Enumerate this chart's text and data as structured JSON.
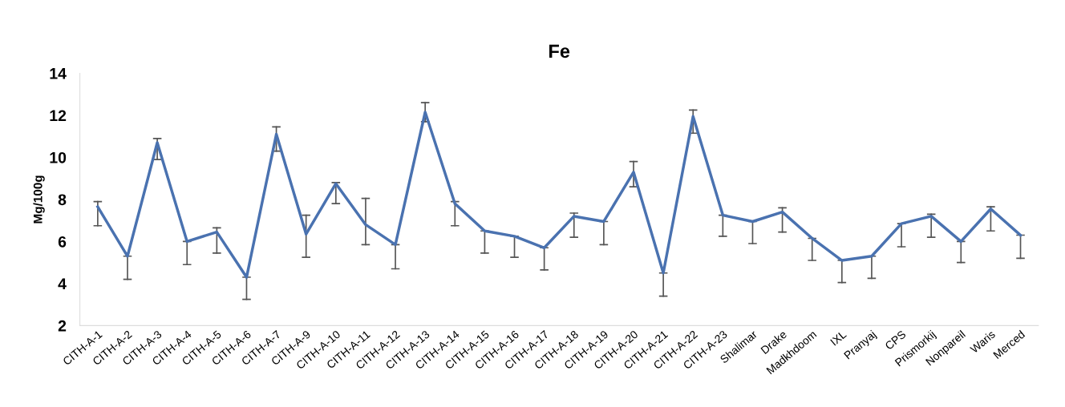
{
  "chart_data": {
    "type": "line",
    "title": "Fe",
    "ylabel": "Mg/100g",
    "categories": [
      "CITH-A-1",
      "CITH-A-2",
      "CITH-A-3",
      "CITH-A-4",
      "CITH-A-5",
      "CITH-A-6",
      "CITH-A-7",
      "CITH-A-9",
      "CITH-A-10",
      "CITH-A-11",
      "CITH-A-12",
      "CITH-A-13",
      "CITH-A-14",
      "CITH-A-15",
      "CITH-A-16",
      "CITH-A-17",
      "CITH-A-18",
      "CITH-A-19",
      "CITH-A-20",
      "CITH-A-21",
      "CITH-A-22",
      "CITH-A-23",
      "Shalimar",
      "Drake",
      "Madkhdoom",
      "IXL",
      "Pranyaj",
      "CPS",
      "Prismorkij",
      "Nonpareil",
      "Waris",
      "Merced"
    ],
    "series": [
      {
        "color": "#4a72b0",
        "values": [
          7.65,
          5.3,
          10.7,
          6.0,
          6.45,
          4.3,
          11.1,
          6.35,
          8.75,
          6.8,
          5.85,
          12.15,
          7.8,
          6.5,
          6.25,
          5.7,
          7.2,
          6.95,
          9.3,
          4.5,
          11.95,
          7.25,
          6.95,
          7.4,
          6.15,
          5.1,
          5.3,
          6.85,
          7.2,
          6.0,
          7.55,
          6.3
        ],
        "errors": [
          [
            6.75,
            7.9
          ],
          [
            4.2,
            5.3
          ],
          [
            9.9,
            10.9
          ],
          [
            4.9,
            6.0
          ],
          [
            5.45,
            6.65
          ],
          [
            3.25,
            4.3
          ],
          [
            10.3,
            11.45
          ],
          [
            5.25,
            7.25
          ],
          [
            7.8,
            8.8
          ],
          [
            5.85,
            8.05
          ],
          [
            4.7,
            5.85
          ],
          [
            11.7,
            12.6
          ],
          [
            6.75,
            7.9
          ],
          [
            5.45,
            6.5
          ],
          [
            5.25,
            6.25
          ],
          [
            4.65,
            5.7
          ],
          [
            6.2,
            7.35
          ],
          [
            5.85,
            6.95
          ],
          [
            8.6,
            9.8
          ],
          [
            3.4,
            4.5
          ],
          [
            11.15,
            12.25
          ],
          [
            6.25,
            7.25
          ],
          [
            5.9,
            6.95
          ],
          [
            6.45,
            7.6
          ],
          [
            5.1,
            6.15
          ],
          [
            4.05,
            5.1
          ],
          [
            4.25,
            5.3
          ],
          [
            5.75,
            6.85
          ],
          [
            6.2,
            7.3
          ],
          [
            5.0,
            6.0
          ],
          [
            6.5,
            7.65
          ],
          [
            5.2,
            6.3
          ]
        ]
      }
    ],
    "ylim": [
      2,
      14
    ],
    "yticks": [
      2,
      4,
      6,
      8,
      10,
      12,
      14
    ],
    "grid": false,
    "legend": false,
    "marker": "none",
    "line_style": "solid"
  }
}
